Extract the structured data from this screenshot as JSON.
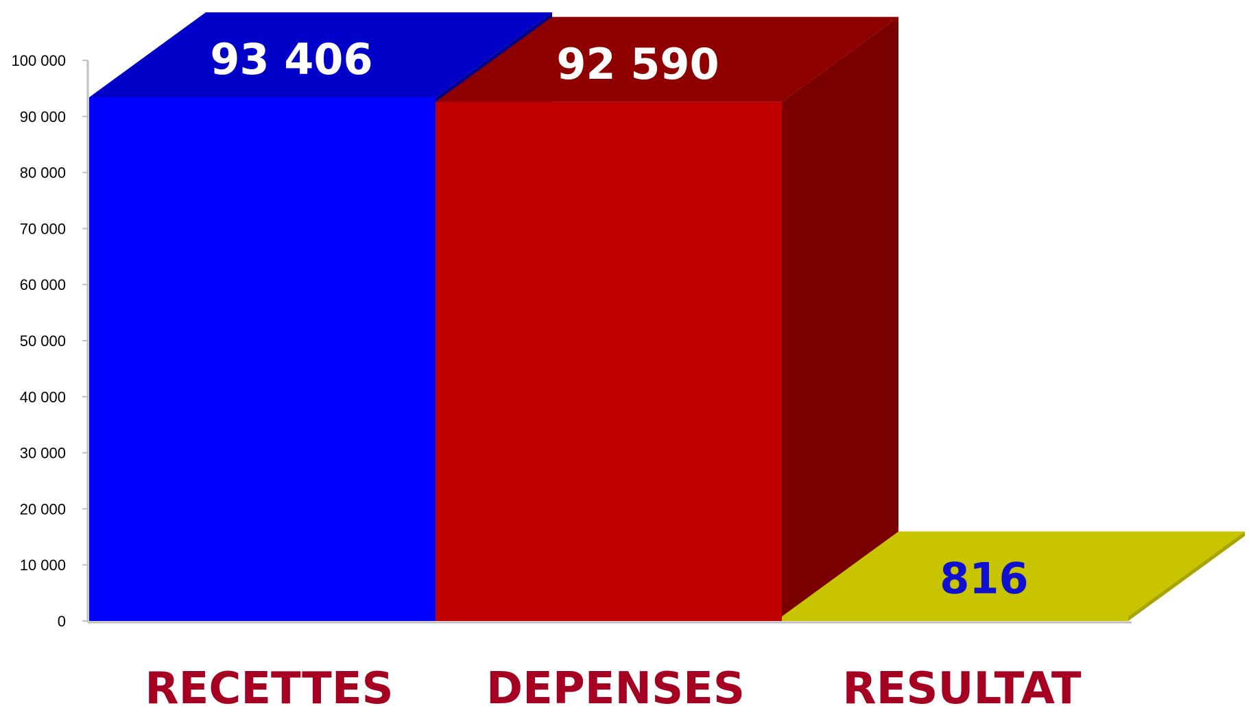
{
  "chart_data": {
    "type": "bar",
    "style": "3d",
    "categories": [
      "RECETTES",
      "DEPENSES",
      "RESULTAT"
    ],
    "values": [
      93406,
      92590,
      816
    ],
    "data_labels": [
      "93 406",
      "92 590",
      "816"
    ],
    "ylim": [
      0,
      100000
    ],
    "yticks": [
      0,
      10000,
      20000,
      30000,
      40000,
      50000,
      60000,
      70000,
      80000,
      90000,
      100000
    ],
    "ytick_labels": [
      "0",
      "10 000",
      "20 000",
      "30 000",
      "40 000",
      "50 000",
      "60 000",
      "70 000",
      "80 000",
      "90 000",
      "100 000"
    ],
    "grid": false,
    "legend": "none",
    "colors": {
      "bars": [
        {
          "front": "#0000ff",
          "top": "#0000c8",
          "side": "#00008c"
        },
        {
          "front": "#c00000",
          "top": "#8e0000",
          "side": "#7a0000"
        },
        {
          "front": "#c8c400",
          "top": "#c8c400",
          "side": "#a8a400"
        }
      ],
      "data_labels": [
        "#ffffff",
        "#ffffff",
        "#1010d0"
      ],
      "category_labels": "#a50021",
      "axis": "#c0c0c0"
    }
  }
}
